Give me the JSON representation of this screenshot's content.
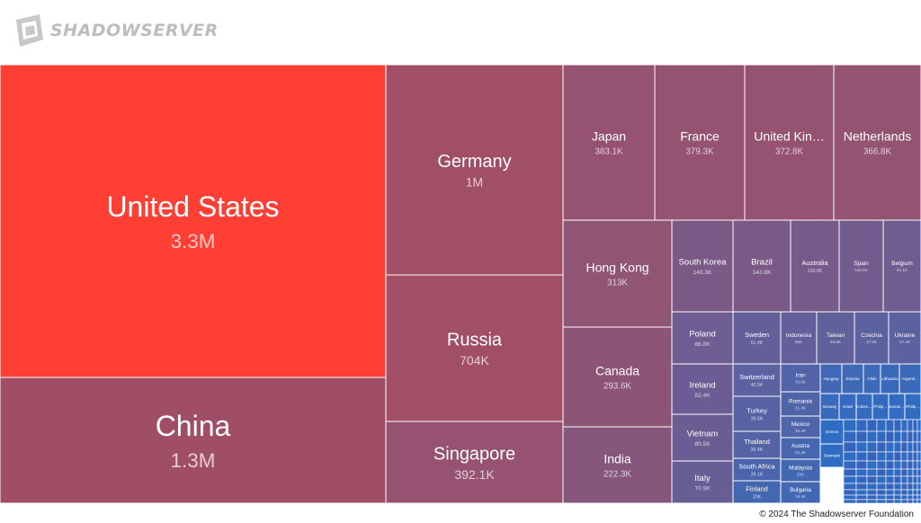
{
  "brand": {
    "name": "SHADOWSERVER",
    "logo_icon": "shadowserver-logo-icon"
  },
  "footer": {
    "copyright": "© 2024 The Shadowserver Foundation"
  },
  "chart_data": {
    "type": "treemap",
    "title": "",
    "colors": {
      "high": "#ff3f34",
      "mid": "#a05068",
      "low": "#2e6cc4"
    },
    "cells": [
      {
        "label": "United States",
        "value_label": "3.3M",
        "value": 3300000
      },
      {
        "label": "China",
        "value_label": "1.3M",
        "value": 1300000
      },
      {
        "label": "Germany",
        "value_label": "1M",
        "value": 1000000
      },
      {
        "label": "Russia",
        "value_label": "704K",
        "value": 704000
      },
      {
        "label": "Singapore",
        "value_label": "392.1K",
        "value": 392100
      },
      {
        "label": "Japan",
        "value_label": "383.1K",
        "value": 383100
      },
      {
        "label": "France",
        "value_label": "379.3K",
        "value": 379300
      },
      {
        "label": "United Kin…",
        "value_label": "372.8K",
        "value": 372800
      },
      {
        "label": "Netherlands",
        "value_label": "366.8K",
        "value": 366800
      },
      {
        "label": "Hong Kong",
        "value_label": "313K",
        "value": 313000
      },
      {
        "label": "Canada",
        "value_label": "293.6K",
        "value": 293600
      },
      {
        "label": "India",
        "value_label": "222.3K",
        "value": 222300
      },
      {
        "label": "South Korea",
        "value_label": "148.3K",
        "value": 148300
      },
      {
        "label": "Brazil",
        "value_label": "143.8K",
        "value": 143800
      },
      {
        "label": "Australia",
        "value_label": "120.8K",
        "value": 120800
      },
      {
        "label": "Spain",
        "value_label": "105.8K",
        "value": 105800
      },
      {
        "label": "Belgium",
        "value_label": "94.1K",
        "value": 94100
      },
      {
        "label": "Poland",
        "value_label": "86.8K",
        "value": 86800
      },
      {
        "label": "Ireland",
        "value_label": "82.4K",
        "value": 82400
      },
      {
        "label": "Vietnam",
        "value_label": "80.5K",
        "value": 80500
      },
      {
        "label": "Italy",
        "value_label": "70.9K",
        "value": 70900
      },
      {
        "label": "Sweden",
        "value_label": "61.4K",
        "value": 61400
      },
      {
        "label": "Indonesia",
        "value_label": "60K",
        "value": 60000
      },
      {
        "label": "Taiwan",
        "value_label": "55.6K",
        "value": 55600
      },
      {
        "label": "Czechia",
        "value_label": "47.5K",
        "value": 47500
      },
      {
        "label": "Ukraine",
        "value_label": "47.4K",
        "value": 47400
      },
      {
        "label": "Switzerland",
        "value_label": "46.9K",
        "value": 46900
      },
      {
        "label": "Turkey",
        "value_label": "39.5K",
        "value": 39500
      },
      {
        "label": "Thailand",
        "value_label": "35.4K",
        "value": 35400
      },
      {
        "label": "South Africa",
        "value_label": "26.1K",
        "value": 26100
      },
      {
        "label": "Finland",
        "value_label": "20K",
        "value": 20000
      },
      {
        "label": "Iran",
        "value_label": "33.6K",
        "value": 33600
      },
      {
        "label": "Romania",
        "value_label": "31.4K",
        "value": 31400
      },
      {
        "label": "Mexico",
        "value_label": "30.4K",
        "value": 30400
      },
      {
        "label": "Austria",
        "value_label": "22.4K",
        "value": 22400
      },
      {
        "label": "Malaysia",
        "value_label": "20K",
        "value": 20000
      },
      {
        "label": "Bulgaria",
        "value_label": "19.4K",
        "value": 19400
      },
      {
        "label": "Hungary",
        "value_label": "",
        "value": 17000
      },
      {
        "label": "Estonia",
        "value_label": "",
        "value": 16500
      },
      {
        "label": "Chile",
        "value_label": "",
        "value": 15000
      },
      {
        "label": "Lithuania",
        "value_label": "",
        "value": 14500
      },
      {
        "label": "Argenti…",
        "value_label": "",
        "value": 14000
      },
      {
        "label": "Norway",
        "value_label": "",
        "value": 13500
      },
      {
        "label": "Israel",
        "value_label": "",
        "value": 12000
      },
      {
        "label": "Colom…",
        "value_label": "",
        "value": 11500
      },
      {
        "label": "Philip…",
        "value_label": "",
        "value": 11000
      },
      {
        "label": "Kazak…",
        "value_label": "",
        "value": 10500
      },
      {
        "label": "Philip…",
        "value_label": "",
        "value": 10000
      },
      {
        "label": "Greece",
        "value_label": "",
        "value": 9500
      },
      {
        "label": "Denmark",
        "value_label": "",
        "value": 9000
      }
    ]
  }
}
